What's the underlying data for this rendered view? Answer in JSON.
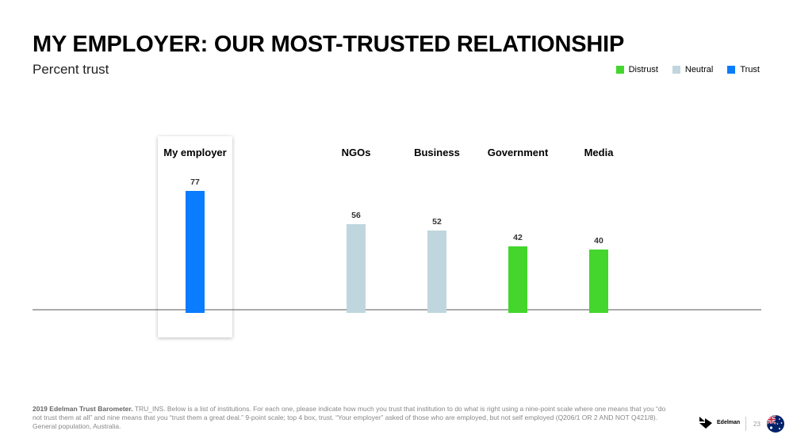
{
  "header": {
    "title": "MY EMPLOYER: OUR MOST-TRUSTED RELATIONSHIP",
    "subtitle": "Percent trust"
  },
  "legend": [
    {
      "label": "Distrust",
      "color": "#44D62C"
    },
    {
      "label": "Neutral",
      "color": "#C0D6DE"
    },
    {
      "label": "Trust",
      "color": "#0A7CFF"
    }
  ],
  "chart_data": {
    "type": "bar",
    "subtitle": "Percent trust",
    "categories": [
      "My employer",
      "NGOs",
      "Business",
      "Government",
      "Media"
    ],
    "values": [
      77,
      56,
      52,
      42,
      40
    ],
    "category_status": [
      "Trust",
      "Neutral",
      "Neutral",
      "Distrust",
      "Distrust"
    ],
    "highlighted_category": "My employer",
    "ylim": [
      0,
      100
    ],
    "grid": false,
    "legend_position": "top-right"
  },
  "footnote": {
    "source_bold": "2019 Edelman Trust Barometer.",
    "text": "TRU_INS. Below is a list of institutions. For each one, please indicate how much you trust that institution to do what is right using a nine-point scale where one means that you “do not trust them at all” and nine means that you “trust them a great deal.” 9-point scale; top 4 box, trust. “Your employer” asked of those who are employed, but not self employed (Q206/1 OR 2 AND NOT Q421/8). General population, Australia."
  },
  "brand": {
    "name": "Edelman",
    "page_number": "23",
    "flag_icon": "australia-flag-icon"
  }
}
